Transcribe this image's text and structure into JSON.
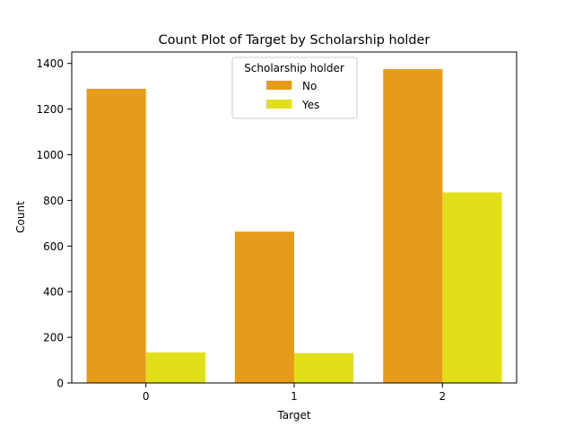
{
  "chart_data": {
    "type": "bar",
    "title": "Count Plot of Target by Scholarship holder",
    "xlabel": "Target",
    "ylabel": "Count",
    "categories": [
      "0",
      "1",
      "2"
    ],
    "ylim": [
      0,
      1450
    ],
    "yticks": [
      0,
      200,
      400,
      600,
      800,
      1000,
      1200,
      1400
    ],
    "grid": false,
    "legend": {
      "title": "Scholarship holder",
      "placement": "top-center"
    },
    "series": [
      {
        "name": "No",
        "color": "#e69b1a",
        "values": [
          1289,
          663,
          1375
        ]
      },
      {
        "name": "Yes",
        "color": "#e0df1a",
        "values": [
          134,
          131,
          835
        ]
      }
    ]
  }
}
